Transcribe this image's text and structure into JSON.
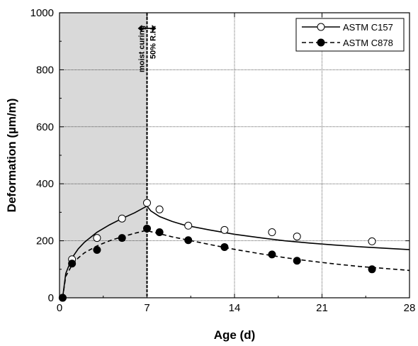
{
  "chart_data": {
    "type": "scatter",
    "xlabel": "Age (d)",
    "ylabel": "Deformation (µm/m)",
    "xlim": [
      0,
      28
    ],
    "ylim": [
      0,
      1000
    ],
    "x_ticks": [
      0,
      7,
      14,
      21,
      28
    ],
    "y_ticks": [
      0,
      200,
      400,
      600,
      800,
      1000
    ],
    "grid": true,
    "legend_position": "top-right",
    "shaded_region": {
      "x_start": 0,
      "x_end": 7,
      "color": "#d9d9d9"
    },
    "annotation": {
      "x": 7,
      "left_label": "moist curing",
      "right_label": "50% R.H."
    },
    "series": [
      {
        "name": "ASTM C157",
        "marker": "open-circle",
        "line_style": "solid",
        "points_x": [
          0.25,
          1,
          3,
          5,
          7,
          8,
          10.3,
          13.2,
          17,
          19,
          25
        ],
        "points_y": [
          0,
          135,
          210,
          278,
          333,
          310,
          253,
          238,
          230,
          215,
          198
        ],
        "fit_x": [
          0.25,
          0.5,
          1,
          1.5,
          2,
          3,
          4,
          5,
          6,
          7,
          7.3,
          8,
          9,
          10,
          12,
          14,
          16,
          18,
          20,
          22,
          24,
          26,
          28
        ],
        "fit_y": [
          0,
          85,
          140,
          172,
          195,
          230,
          256,
          278,
          298,
          322,
          305,
          285,
          268,
          255,
          238,
          223,
          211,
          200,
          192,
          185,
          179,
          174,
          169
        ]
      },
      {
        "name": "ASTM C878",
        "marker": "filled-circle",
        "line_style": "dashed",
        "points_x": [
          0.25,
          1,
          3,
          5,
          7,
          8,
          10.3,
          13.2,
          17,
          19,
          25
        ],
        "points_y": [
          0,
          120,
          168,
          210,
          243,
          230,
          202,
          178,
          152,
          130,
          100
        ],
        "fit_x": [
          0.25,
          0.5,
          1,
          1.5,
          2,
          3,
          4,
          5,
          6,
          7,
          7.3,
          8,
          9,
          10,
          12,
          14,
          16,
          18,
          20,
          22,
          24,
          26,
          28
        ],
        "fit_y": [
          0,
          75,
          115,
          140,
          158,
          182,
          200,
          214,
          226,
          237,
          232,
          225,
          214,
          205,
          187,
          170,
          155,
          141,
          129,
          119,
          110,
          103,
          96
        ]
      }
    ]
  }
}
